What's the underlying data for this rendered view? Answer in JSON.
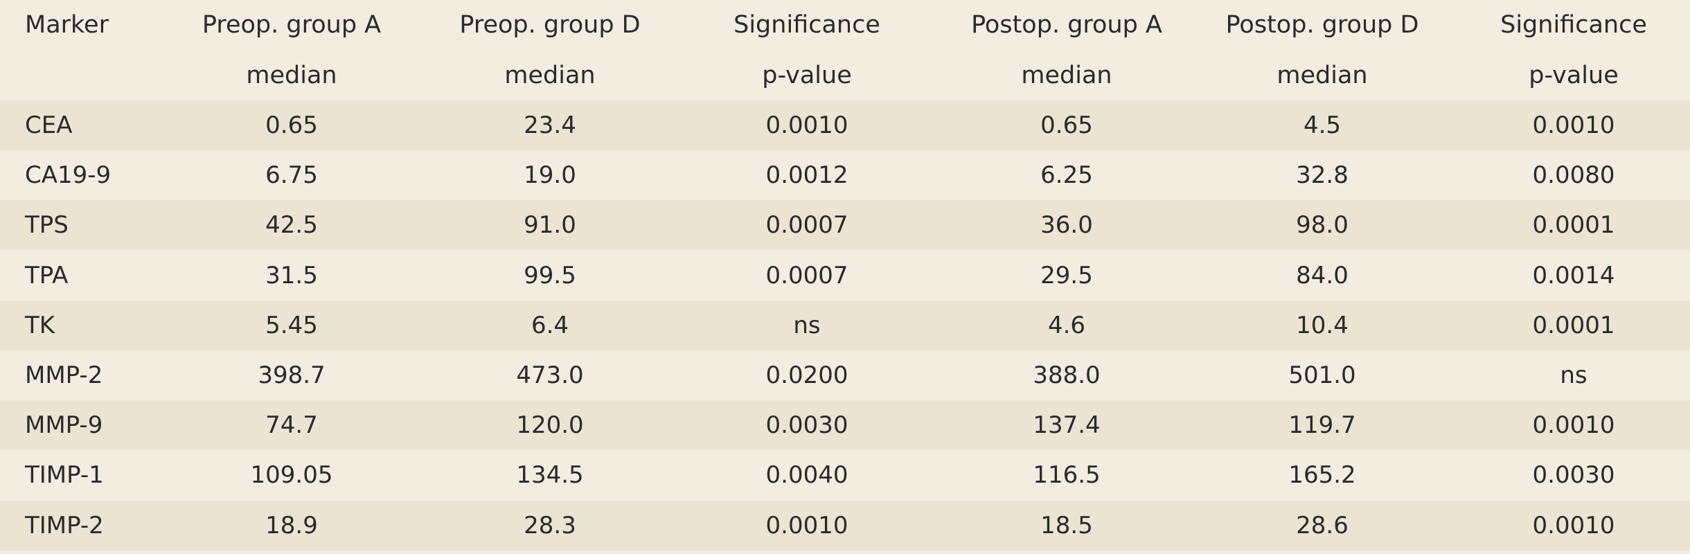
{
  "table": {
    "header": {
      "line1": [
        "Marker",
        "Preop. group A",
        "Preop. group D",
        "Significance",
        "Postop. group A",
        "Postop. group D",
        "Significance"
      ],
      "line2": [
        "",
        "median",
        "median",
        "p-value",
        "median",
        "median",
        "p-value"
      ]
    },
    "rows": [
      [
        "CEA",
        "0.65",
        "23.4",
        "0.0010",
        "0.65",
        "4.5",
        "0.0010"
      ],
      [
        "CA19-9",
        "6.75",
        "19.0",
        "0.0012",
        "6.25",
        "32.8",
        "0.0080"
      ],
      [
        "TPS",
        "42.5",
        "91.0",
        "0.0007",
        "36.0",
        "98.0",
        "0.0001"
      ],
      [
        "TPA",
        "31.5",
        "99.5",
        "0.0007",
        "29.5",
        "84.0",
        "0.0014"
      ],
      [
        "TK",
        "5.45",
        "6.4",
        "ns",
        "4.6",
        "10.4",
        "0.0001"
      ],
      [
        "MMP-2",
        "398.7",
        "473.0",
        "0.0200",
        "388.0",
        "501.0",
        "ns"
      ],
      [
        "MMP-9",
        "74.7",
        "120.0",
        "0.0030",
        "137.4",
        "119.7",
        "0.0010"
      ],
      [
        "TIMP-1",
        "109.05",
        "134.5",
        "0.0040",
        "116.5",
        "165.2",
        "0.0030"
      ],
      [
        "TIMP-2",
        "18.9",
        "28.3",
        "0.0010",
        "18.5",
        "28.6",
        "0.0010"
      ]
    ],
    "colors": {
      "background": "#f2ece1",
      "stripe": "#ece4d3",
      "text": "#2a2a2a"
    }
  }
}
